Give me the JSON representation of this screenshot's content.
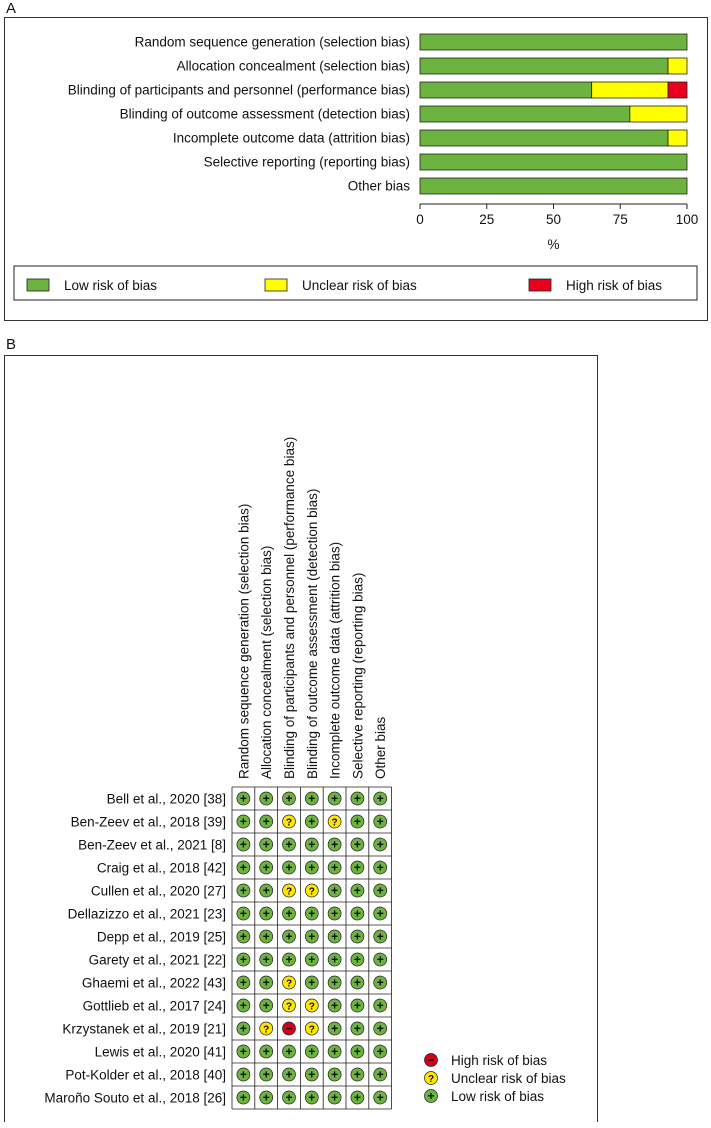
{
  "panel_a_label": "A",
  "panel_b_label": "B",
  "chart_data": [
    {
      "type": "bar",
      "orientation": "horizontal-stacked",
      "categories": [
        "Random sequence generation (selection bias)",
        "Allocation concealment (selection bias)",
        "Blinding of participants and personnel (performance bias)",
        "Blinding of outcome assessment (detection bias)",
        "Incomplete outcome data (attrition bias)",
        "Selective reporting (reporting bias)",
        "Other bias"
      ],
      "series": [
        {
          "name": "Low risk of bias",
          "color": "#6db33f",
          "values": [
            100,
            92.9,
            64.3,
            78.6,
            92.9,
            100,
            100
          ]
        },
        {
          "name": "Unclear risk of bias",
          "color": "#ffff00",
          "values": [
            0,
            7.1,
            28.6,
            21.4,
            7.1,
            0,
            0
          ]
        },
        {
          "name": "High risk of bias",
          "color": "#e8001c",
          "values": [
            0,
            0,
            7.1,
            0,
            0,
            0,
            0
          ]
        }
      ],
      "xlabel": "%",
      "xticks": [
        "0",
        "25",
        "50",
        "75",
        "100"
      ],
      "xlim": [
        0,
        100
      ],
      "legend_position": "bottom"
    },
    {
      "type": "table",
      "columns": [
        "Random sequence generation (selection bias)",
        "Allocation concealment (selection bias)",
        "Blinding of participants and personnel (performance bias)",
        "Blinding of outcome assessment (detection bias)",
        "Incomplete outcome data (attrition bias)",
        "Selective reporting (reporting bias)",
        "Other bias"
      ],
      "rows": [
        {
          "study": "Bell et al., 2020 [38]",
          "ratings": [
            "low",
            "low",
            "low",
            "low",
            "low",
            "low",
            "low"
          ]
        },
        {
          "study": "Ben-Zeev et al., 2018 [39]",
          "ratings": [
            "low",
            "low",
            "unclear",
            "low",
            "unclear",
            "low",
            "low"
          ]
        },
        {
          "study": "Ben-Zeev et al., 2021 [8]",
          "ratings": [
            "low",
            "low",
            "low",
            "low",
            "low",
            "low",
            "low"
          ]
        },
        {
          "study": "Craig et al., 2018 [42]",
          "ratings": [
            "low",
            "low",
            "low",
            "low",
            "low",
            "low",
            "low"
          ]
        },
        {
          "study": "Cullen et al., 2020 [27]",
          "ratings": [
            "low",
            "low",
            "unclear",
            "unclear",
            "low",
            "low",
            "low"
          ]
        },
        {
          "study": "Dellazizzo et al., 2021 [23]",
          "ratings": [
            "low",
            "low",
            "low",
            "low",
            "low",
            "low",
            "low"
          ]
        },
        {
          "study": "Depp et al., 2019 [25]",
          "ratings": [
            "low",
            "low",
            "low",
            "low",
            "low",
            "low",
            "low"
          ]
        },
        {
          "study": "Garety et al., 2021 [22]",
          "ratings": [
            "low",
            "low",
            "low",
            "low",
            "low",
            "low",
            "low"
          ]
        },
        {
          "study": "Ghaemi et al., 2022 [43]",
          "ratings": [
            "low",
            "low",
            "unclear",
            "low",
            "low",
            "low",
            "low"
          ]
        },
        {
          "study": "Gottlieb et al., 2017 [24]",
          "ratings": [
            "low",
            "low",
            "unclear",
            "unclear",
            "low",
            "low",
            "low"
          ]
        },
        {
          "study": "Krzystanek et al., 2019 [21]",
          "ratings": [
            "low",
            "unclear",
            "high",
            "unclear",
            "low",
            "low",
            "low"
          ]
        },
        {
          "study": "Lewis et al., 2020 [41]",
          "ratings": [
            "low",
            "low",
            "low",
            "low",
            "low",
            "low",
            "low"
          ]
        },
        {
          "study": "Pot-Kolder et al., 2018 [40]",
          "ratings": [
            "low",
            "low",
            "low",
            "low",
            "low",
            "low",
            "low"
          ]
        },
        {
          "study": "Maroño Souto et al., 2018 [26]",
          "ratings": [
            "low",
            "low",
            "low",
            "low",
            "low",
            "low",
            "low"
          ]
        }
      ],
      "legend": [
        {
          "key": "high",
          "label": "High risk of bias",
          "color": "#d4001a",
          "symbol": "−"
        },
        {
          "key": "unclear",
          "label": "Unclear risk of bias",
          "color": "#ffe600",
          "symbol": "?"
        },
        {
          "key": "low",
          "label": "Low risk of bias",
          "color": "#6db33f",
          "symbol": "+"
        }
      ]
    }
  ]
}
